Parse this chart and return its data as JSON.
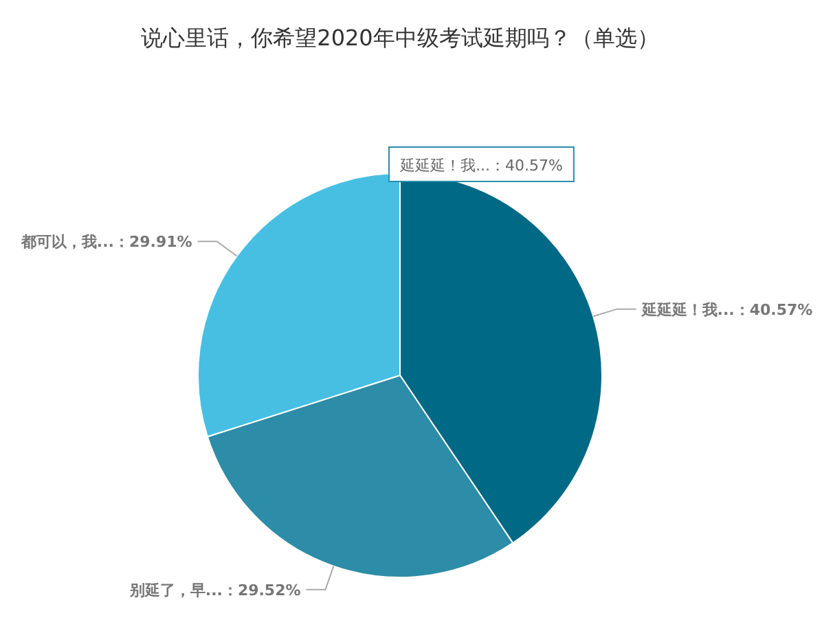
{
  "chart_data": {
    "type": "pie",
    "title": "说心里话，你希望2020年中级考试延期吗？（单选）",
    "categories": [
      "延延延！我...",
      "别延了，早...",
      "都可以，我..."
    ],
    "values": [
      40.57,
      29.52,
      29.91
    ],
    "value_labels": [
      "40.57%",
      "29.52%",
      "29.91%"
    ],
    "colors": [
      "#006985",
      "#2d8ca8",
      "#46bfe3"
    ],
    "annotations": [
      "延延延！我...：40.57%"
    ]
  }
}
